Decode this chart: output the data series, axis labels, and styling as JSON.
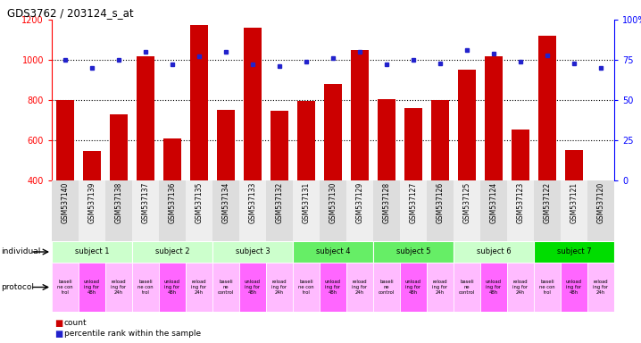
{
  "title": "GDS3762 / 203124_s_at",
  "samples": [
    "GSM537140",
    "GSM537139",
    "GSM537138",
    "GSM537137",
    "GSM537136",
    "GSM537135",
    "GSM537134",
    "GSM537133",
    "GSM537132",
    "GSM537131",
    "GSM537130",
    "GSM537129",
    "GSM537128",
    "GSM537127",
    "GSM537126",
    "GSM537125",
    "GSM537124",
    "GSM537123",
    "GSM537122",
    "GSM537121",
    "GSM537120"
  ],
  "counts": [
    800,
    545,
    730,
    1020,
    610,
    1175,
    750,
    1160,
    748,
    795,
    880,
    1050,
    805,
    760,
    800,
    950,
    1020,
    655,
    1120,
    550,
    400
  ],
  "percentiles": [
    75,
    70,
    75,
    80,
    72,
    77,
    80,
    72,
    71,
    74,
    76,
    80,
    72,
    75,
    73,
    81,
    79,
    74,
    78,
    73,
    70
  ],
  "ylim_left": [
    400,
    1200
  ],
  "ylim_right": [
    0,
    100
  ],
  "yticks_left": [
    400,
    600,
    800,
    1000,
    1200
  ],
  "yticks_right": [
    0,
    25,
    50,
    75,
    100
  ],
  "bar_color": "#cc0000",
  "dot_color": "#2222cc",
  "bg_color": "#ffffff",
  "subjects": [
    {
      "label": "subject 1",
      "start": 0,
      "end": 3,
      "color": "#ccffcc"
    },
    {
      "label": "subject 2",
      "start": 3,
      "end": 6,
      "color": "#ccffcc"
    },
    {
      "label": "subject 3",
      "start": 6,
      "end": 9,
      "color": "#ccffcc"
    },
    {
      "label": "subject 4",
      "start": 9,
      "end": 12,
      "color": "#66ee66"
    },
    {
      "label": "subject 5",
      "start": 12,
      "end": 15,
      "color": "#66ee66"
    },
    {
      "label": "subject 6",
      "start": 15,
      "end": 18,
      "color": "#ccffcc"
    },
    {
      "label": "subject 7",
      "start": 18,
      "end": 21,
      "color": "#00dd00"
    }
  ],
  "protocol_labels": [
    "baseli\nne con\ntrol",
    "unload\ning for\n48h",
    "reload\ning for\n24h",
    "baseli\nne con\ntrol",
    "unload\ning for\n48h",
    "reload\ning for\n24h",
    "baseli\nne\ncontrol",
    "unload\ning for\n48h",
    "reload\ning for\n24h",
    "baseli\nne con\ntrol",
    "unload\ning for\n48h",
    "reload\ning for\n24h",
    "baseli\nne\ncontrol",
    "unload\ning for\n48h",
    "reload\ning for\n24h",
    "baseli\nne\ncontrol",
    "unload\ning for\n48h",
    "reload\ning for\n24h",
    "baseli\nne con\ntrol",
    "unload\ning for\n48h",
    "reload\ning for\n24h"
  ],
  "protocol_colors": [
    "#ffbbff",
    "#ff66ff",
    "#ffbbff",
    "#ffbbff",
    "#ff66ff",
    "#ffbbff",
    "#ffbbff",
    "#ff66ff",
    "#ffbbff",
    "#ffbbff",
    "#ff66ff",
    "#ffbbff",
    "#ffbbff",
    "#ff66ff",
    "#ffbbff",
    "#ffbbff",
    "#ff66ff",
    "#ffbbff",
    "#ffbbff",
    "#ff66ff",
    "#ffbbff"
  ],
  "sample_bg_colors": [
    "#dddddd",
    "#eeeeee",
    "#dddddd",
    "#eeeeee",
    "#dddddd",
    "#eeeeee",
    "#dddddd",
    "#eeeeee",
    "#dddddd",
    "#eeeeee",
    "#dddddd",
    "#eeeeee",
    "#dddddd",
    "#eeeeee",
    "#dddddd",
    "#eeeeee",
    "#dddddd",
    "#eeeeee",
    "#dddddd",
    "#eeeeee",
    "#dddddd"
  ]
}
